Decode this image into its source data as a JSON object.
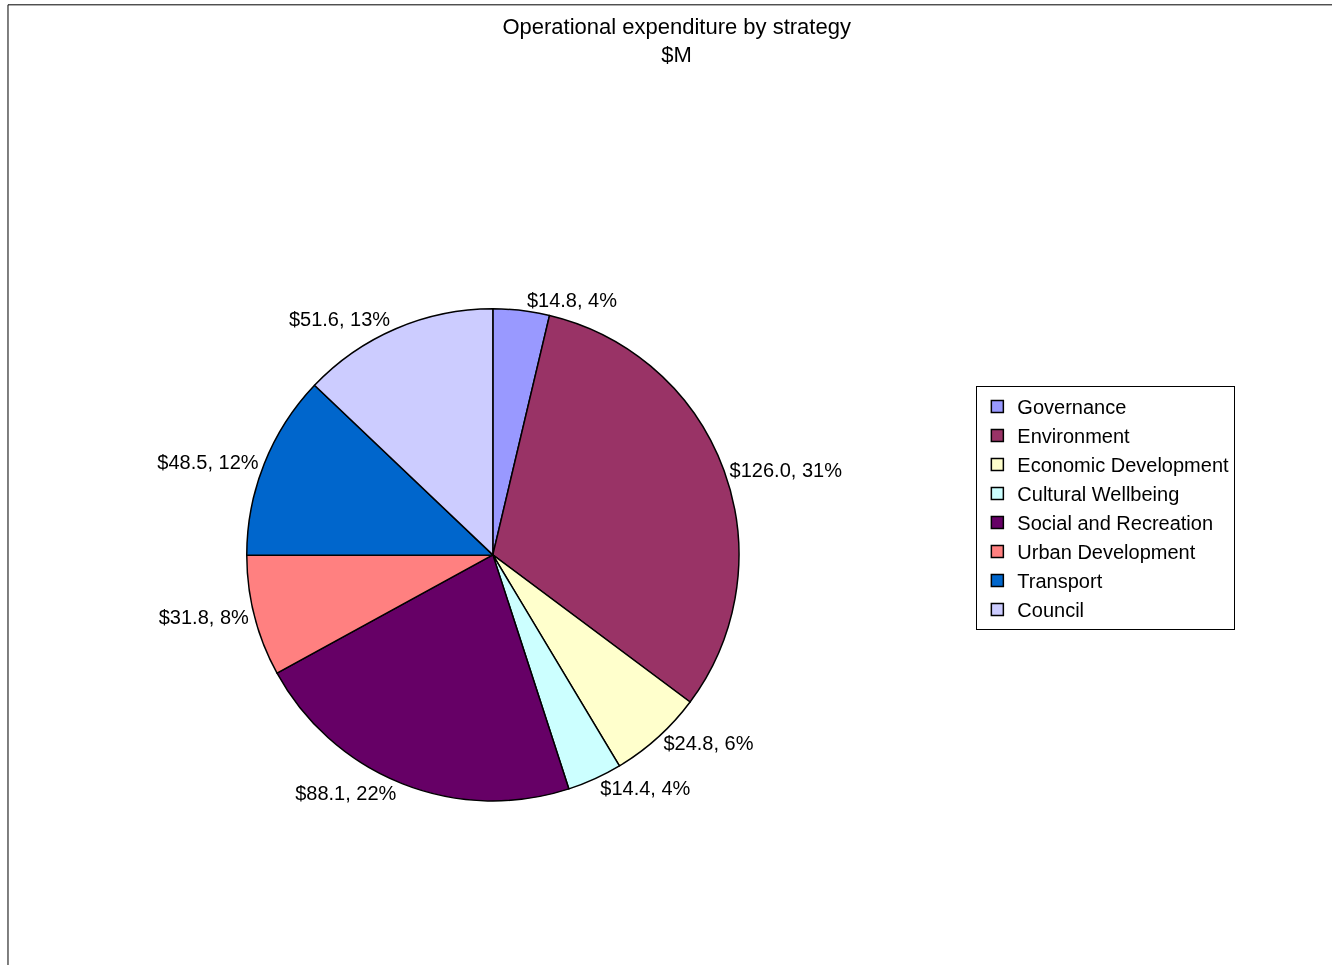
{
  "chart_data": {
    "type": "pie",
    "title": "Operational expenditure by strategy\n$M",
    "categories": [
      "Governance",
      "Environment",
      "Economic Development",
      "Cultural Wellbeing",
      "Social and Recreation",
      "Urban Development",
      "Transport",
      "Council"
    ],
    "values": [
      14.8,
      126.0,
      24.8,
      14.4,
      88.1,
      31.8,
      48.5,
      51.6
    ],
    "value_labels": [
      "$14.8, 4%",
      "$126.0, 31%",
      "$24.8, 6%",
      "$14.4, 4%",
      "$88.1, 22%",
      "$31.8, 8%",
      "$48.5, 12%",
      "$51.6, 13%"
    ],
    "colors": [
      "#9999ff",
      "#993366",
      "#ffffcc",
      "#ccffff",
      "#660066",
      "#ff8080",
      "#0066cc",
      "#ccccff"
    ],
    "legend": "right"
  }
}
